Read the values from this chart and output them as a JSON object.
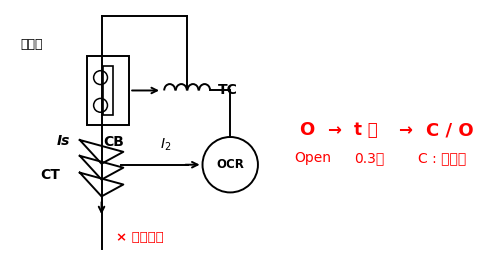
{
  "bg_color": "#ffffff",
  "black": "#000000",
  "red": "#ff0000",
  "label_과전류": "과전류",
  "label_CB": "CB",
  "label_TC": "TC",
  "label_OCR": "OCR",
  "label_Is": "Is",
  "label_CT": "CT",
  "label_I2": "I2",
  "label_단락사고": "× 단락사고",
  "label_line1_O": "O",
  "label_line1_arr1": "→",
  "label_line1_t": "t 초",
  "label_line1_arr2": "→",
  "label_line1_CO": "C / O",
  "label_line2": "Open      0.3초        C : 재투입",
  "figsize": [
    5.04,
    2.74
  ],
  "dpi": 100,
  "lw": 1.4
}
